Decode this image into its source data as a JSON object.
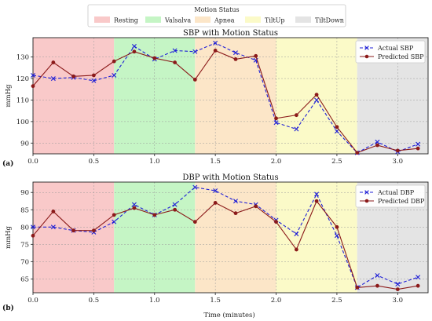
{
  "legend_top": {
    "title": "Motion Status",
    "items": [
      {
        "label": "Resting",
        "color": "#f9c9c9"
      },
      {
        "label": "Valsalva",
        "color": "#c5f5c5"
      },
      {
        "label": "Apnea",
        "color": "#fce6c8"
      },
      {
        "label": "TiltUp",
        "color": "#fbfac8"
      },
      {
        "label": "TiltDown",
        "color": "#e4e4e4"
      }
    ]
  },
  "xlabel": "Time (minutes)",
  "chart_data": [
    {
      "type": "line",
      "panel_label": "(a)",
      "title": "SBP with Motion Status",
      "ylabel": "mmHg",
      "xlim": [
        0,
        3.25
      ],
      "ylim": [
        85,
        139
      ],
      "xticks": [
        "0.0",
        "0.5",
        "1.0",
        "1.5",
        "2.0",
        "2.5",
        "3.0"
      ],
      "yticks": [
        "90",
        "100",
        "110",
        "120",
        "130"
      ],
      "grid": true,
      "legend_position": "top-right",
      "regions": [
        {
          "label": "Resting",
          "start": 0,
          "end": 0.667
        },
        {
          "label": "Valsalva",
          "start": 0.667,
          "end": 1.333
        },
        {
          "label": "Apnea",
          "start": 1.333,
          "end": 2.0
        },
        {
          "label": "TiltUp",
          "start": 2.0,
          "end": 2.667
        },
        {
          "label": "TiltDown",
          "start": 2.667,
          "end": 3.25
        }
      ],
      "x": [
        0,
        0.167,
        0.333,
        0.5,
        0.667,
        0.833,
        1.0,
        1.167,
        1.333,
        1.5,
        1.667,
        1.833,
        2.0,
        2.167,
        2.333,
        2.5,
        2.667,
        2.833,
        3.0,
        3.167
      ],
      "series": [
        {
          "name": "Actual SBP",
          "color": "#1f1fd6",
          "style": "dashed",
          "marker": "x",
          "values": [
            121.5,
            120.0,
            120.5,
            119.0,
            121.5,
            135.0,
            129.0,
            133.0,
            132.5,
            136.5,
            132.0,
            128.5,
            99.5,
            96.5,
            110.0,
            95.5,
            85.5,
            90.5,
            86.0,
            89.5
          ]
        },
        {
          "name": "Predicted SBP",
          "color": "#8b1a1a",
          "style": "solid",
          "marker": "o",
          "values": [
            116.5,
            127.5,
            121.0,
            121.5,
            128.0,
            132.5,
            129.5,
            127.5,
            119.5,
            133.0,
            129.0,
            130.5,
            101.5,
            103.0,
            112.5,
            97.5,
            85.5,
            89.0,
            86.5,
            87.5
          ]
        }
      ]
    },
    {
      "type": "line",
      "panel_label": "(b)",
      "title": "DBP with Motion Status",
      "ylabel": "mmHg",
      "xlim": [
        0,
        3.25
      ],
      "ylim": [
        61,
        93
      ],
      "xticks": [
        "0.0",
        "0.5",
        "1.0",
        "1.5",
        "2.0",
        "2.5",
        "3.0"
      ],
      "yticks": [
        "65",
        "70",
        "75",
        "80",
        "85",
        "90"
      ],
      "grid": true,
      "legend_position": "top-right",
      "regions": [
        {
          "label": "Resting",
          "start": 0,
          "end": 0.667
        },
        {
          "label": "Valsalva",
          "start": 0.667,
          "end": 1.333
        },
        {
          "label": "Apnea",
          "start": 1.333,
          "end": 2.0
        },
        {
          "label": "TiltUp",
          "start": 2.0,
          "end": 2.667
        },
        {
          "label": "TiltDown",
          "start": 2.667,
          "end": 3.25
        }
      ],
      "x": [
        0,
        0.167,
        0.333,
        0.5,
        0.667,
        0.833,
        1.0,
        1.167,
        1.333,
        1.5,
        1.667,
        1.833,
        2.0,
        2.167,
        2.333,
        2.5,
        2.667,
        2.833,
        3.0,
        3.167
      ],
      "series": [
        {
          "name": "Actual DBP",
          "color": "#1f1fd6",
          "style": "dashed",
          "marker": "x",
          "values": [
            80.0,
            80.0,
            79.0,
            78.5,
            81.5,
            86.5,
            83.5,
            86.5,
            91.5,
            90.5,
            87.5,
            86.5,
            82.0,
            78.0,
            89.5,
            77.5,
            62.5,
            66.0,
            63.5,
            65.5
          ]
        },
        {
          "name": "Predicted DBP",
          "color": "#8b1a1a",
          "style": "solid",
          "marker": "o",
          "values": [
            77.5,
            84.5,
            79.0,
            79.0,
            83.5,
            85.5,
            83.5,
            85.0,
            81.5,
            87.0,
            84.0,
            86.0,
            81.5,
            73.5,
            87.5,
            80.0,
            62.5,
            63.0,
            62.0,
            63.0
          ]
        }
      ]
    }
  ]
}
